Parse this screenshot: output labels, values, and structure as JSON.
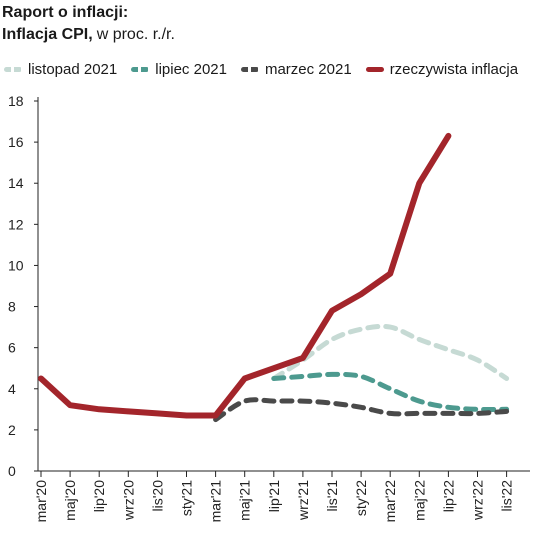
{
  "header": {
    "title": "Raport o inflacji:",
    "subtitle_bold": "Inflacja CPI,",
    "subtitle_unit": "w proc.  r./r."
  },
  "legend": [
    {
      "label": "listopad 2021",
      "color": "#c6dad4",
      "dash": true
    },
    {
      "label": "lipiec 2021",
      "color": "#4d9a8f",
      "dash": true
    },
    {
      "label": "marzec 2021",
      "color": "#4a4a4a",
      "dash": true
    },
    {
      "label": "rzeczywista inflacja",
      "color": "#a3252b",
      "dash": false
    }
  ],
  "chart_data": {
    "type": "line",
    "x": [
      "mar'20",
      "maj'20",
      "lip'20",
      "wrz'20",
      "lis'20",
      "sty'21",
      "mar'21",
      "maj'21",
      "lip'21",
      "wrz'21",
      "lis'21",
      "sty'22",
      "mar'22",
      "maj'22",
      "lip'22",
      "wrz'22",
      "lis'22"
    ],
    "ylim": [
      0,
      18
    ],
    "yticks": [
      0,
      2,
      4,
      6,
      8,
      10,
      12,
      14,
      16,
      18
    ],
    "grid": false,
    "legend_position": "top",
    "series": [
      {
        "name": "listopad 2021",
        "color": "#c6dad4",
        "style": "dashed",
        "values": [
          null,
          null,
          null,
          null,
          null,
          null,
          null,
          null,
          4.5,
          5.4,
          6.4,
          6.9,
          7.0,
          6.4,
          5.9,
          5.4,
          4.5
        ]
      },
      {
        "name": "lipiec 2021",
        "color": "#4d9a8f",
        "style": "dashed",
        "values": [
          null,
          null,
          null,
          null,
          null,
          null,
          null,
          null,
          4.5,
          4.6,
          4.7,
          4.6,
          4.0,
          3.4,
          3.1,
          3.0,
          3.0
        ]
      },
      {
        "name": "marzec 2021",
        "color": "#4a4a4a",
        "style": "dashed",
        "values": [
          null,
          null,
          null,
          null,
          null,
          null,
          2.5,
          3.4,
          3.4,
          3.4,
          3.3,
          3.1,
          2.8,
          2.8,
          2.8,
          2.8,
          2.9
        ]
      },
      {
        "name": "rzeczywista inflacja",
        "color": "#a3252b",
        "style": "solid",
        "values": [
          4.5,
          3.2,
          3.0,
          2.9,
          2.8,
          2.7,
          2.7,
          4.5,
          5.0,
          5.5,
          7.8,
          8.6,
          9.6,
          14.0,
          16.3,
          null,
          null
        ]
      }
    ]
  }
}
